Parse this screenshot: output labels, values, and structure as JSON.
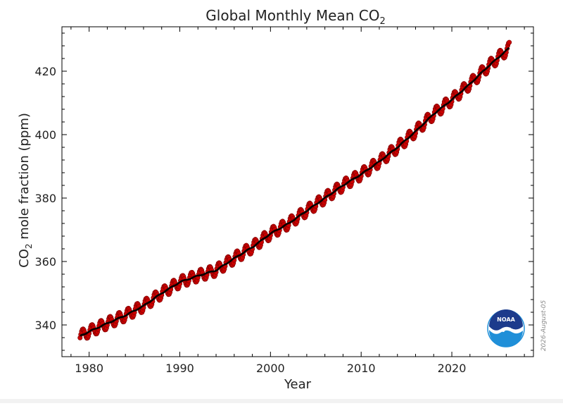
{
  "chart_data": {
    "type": "line",
    "title_main": "Global Monthly Mean CO",
    "title_sub": "2",
    "xlabel": "Year",
    "ylabel_main": "CO",
    "ylabel_sub": "2",
    "ylabel_rest": " mole fraction (ppm)",
    "xlim": [
      1977,
      2029
    ],
    "ylim": [
      330,
      434
    ],
    "xticks": [
      1980,
      1990,
      2000,
      2010,
      2020
    ],
    "yticks": [
      340,
      360,
      380,
      400,
      420
    ],
    "grid": false,
    "series": [
      {
        "kind": "monthly-mean-points",
        "color": "#cc0000",
        "seasonal_amplitude_ppm": 1.8,
        "x_start": 1979.0,
        "x_end": 2026.4,
        "trend_anchors": [
          [
            1979.0,
            336.5
          ],
          [
            1980.0,
            337.9
          ],
          [
            1982.0,
            340.5
          ],
          [
            1984.0,
            343.0
          ],
          [
            1986.0,
            346.0
          ],
          [
            1988.0,
            350.0
          ],
          [
            1990.0,
            353.5
          ],
          [
            1992.0,
            355.5
          ],
          [
            1994.0,
            357.2
          ],
          [
            1996.0,
            361.0
          ],
          [
            1998.0,
            364.5
          ],
          [
            2000.0,
            368.8
          ],
          [
            2002.0,
            372.0
          ],
          [
            2004.0,
            376.0
          ],
          [
            2006.0,
            380.0
          ],
          [
            2008.0,
            384.0
          ],
          [
            2010.0,
            387.5
          ],
          [
            2012.0,
            391.5
          ],
          [
            2014.0,
            396.0
          ],
          [
            2016.0,
            401.0
          ],
          [
            2018.0,
            406.5
          ],
          [
            2020.0,
            411.0
          ],
          [
            2022.0,
            416.0
          ],
          [
            2024.0,
            421.5
          ],
          [
            2026.4,
            427.5
          ]
        ]
      },
      {
        "kind": "deseasonalized-trend-line",
        "color": "#000000"
      }
    ]
  },
  "watermark_date": "2026-August-05",
  "logo": {
    "text": "NOAA",
    "colors": {
      "dark": "#1d3b8c",
      "light": "#1f8fd8",
      "white": "#ffffff"
    }
  }
}
